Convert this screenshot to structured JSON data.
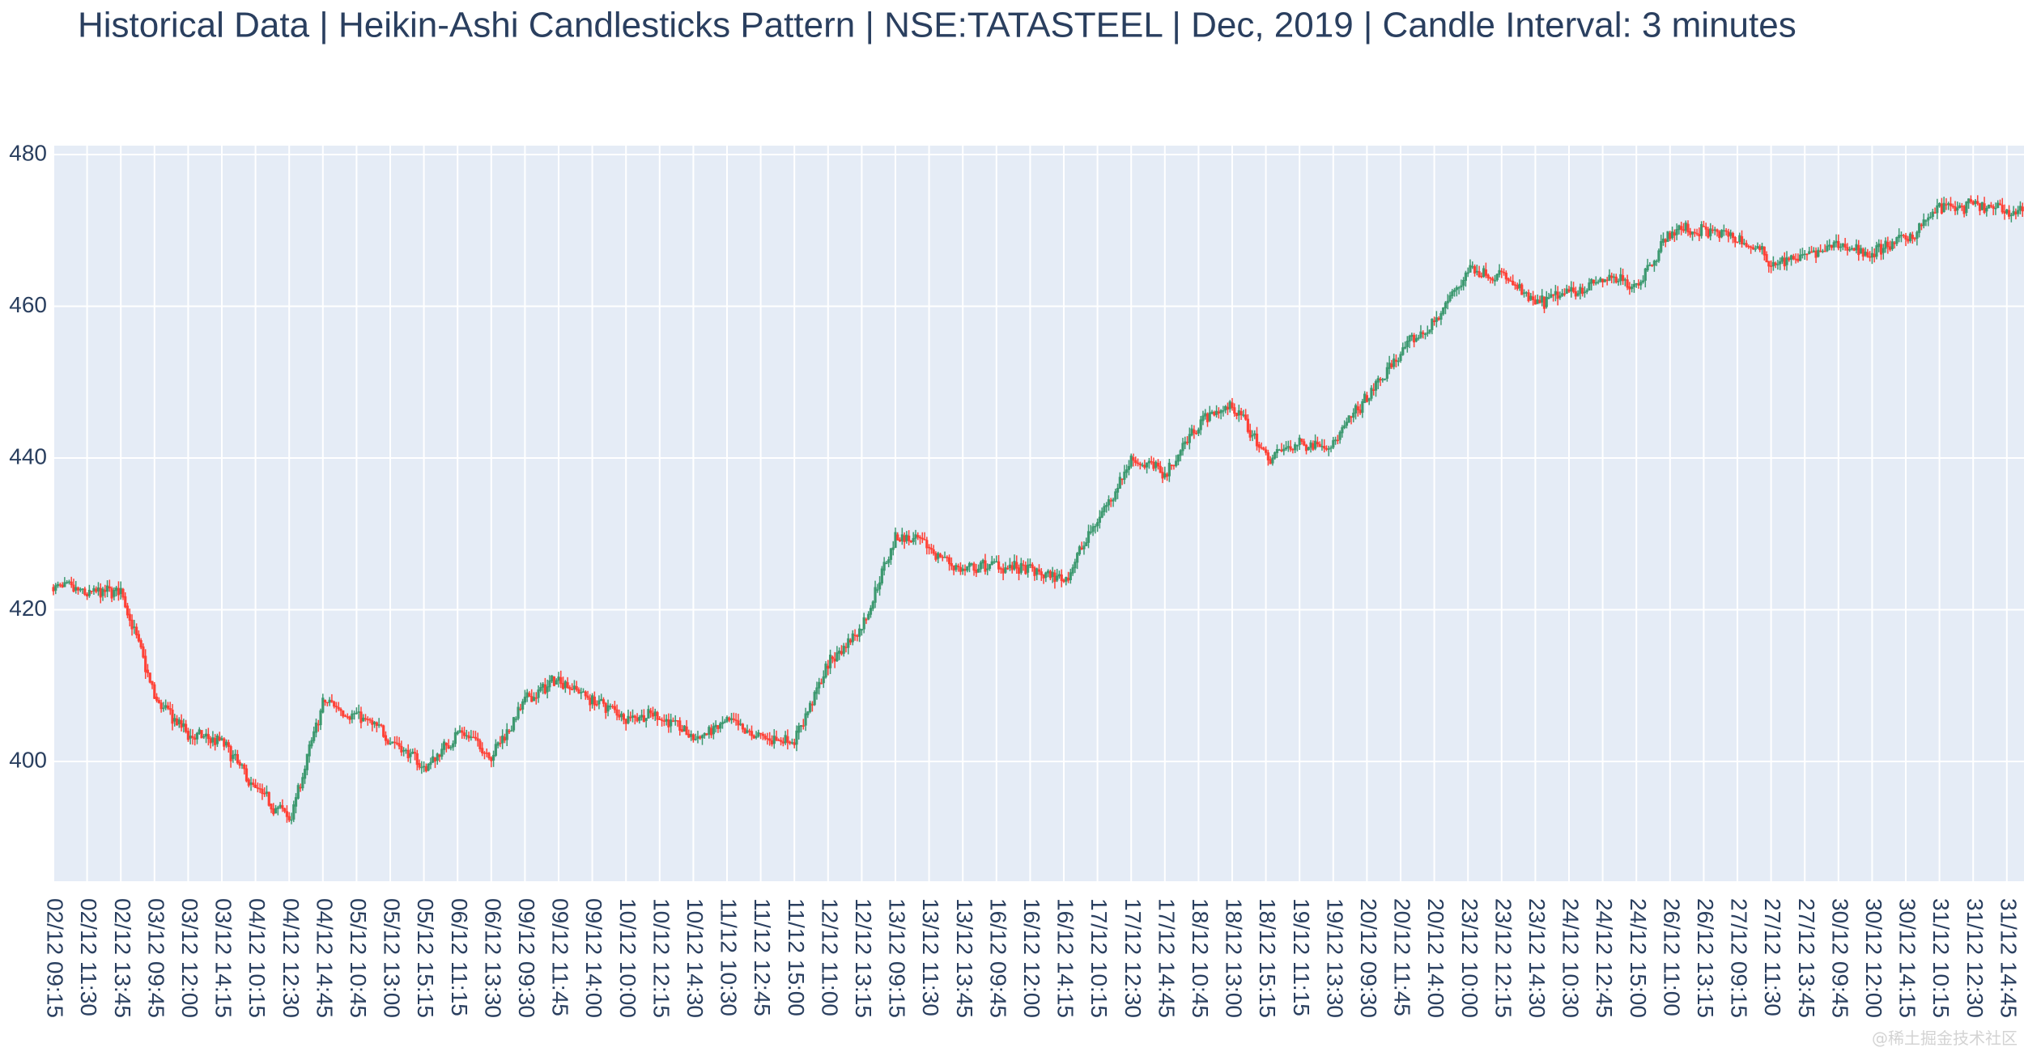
{
  "chart_data": {
    "type": "candlestick",
    "title": "Historical Data | Heikin-Ashi Candlesticks Pattern | NSE:TATASTEEL | Dec, 2019 | Candle Interval: 3 minutes",
    "xlabel": "",
    "ylabel": "",
    "ylim": [
      384,
      481
    ],
    "yticks": [
      400,
      420,
      440,
      460,
      480
    ],
    "grid": true,
    "increasing_color": "#3D9970",
    "decreasing_color": "#FF4136",
    "x_ticks": [
      "02/12 09:15",
      "02/12 11:30",
      "02/12 13:45",
      "03/12 09:45",
      "03/12 12:00",
      "03/12 14:15",
      "04/12 10:15",
      "04/12 12:30",
      "04/12 14:45",
      "05/12 10:45",
      "05/12 13:00",
      "05/12 15:15",
      "06/12 11:15",
      "06/12 13:30",
      "09/12 09:30",
      "09/12 11:45",
      "09/12 14:00",
      "10/12 10:00",
      "10/12 12:15",
      "10/12 14:30",
      "11/12 10:30",
      "11/12 12:45",
      "11/12 15:00",
      "12/12 11:00",
      "12/12 13:15",
      "13/12 09:15",
      "13/12 11:30",
      "13/12 13:45",
      "16/12 09:45",
      "16/12 12:00",
      "16/12 14:15",
      "17/12 10:15",
      "17/12 12:30",
      "17/12 14:45",
      "18/12 10:45",
      "18/12 13:00",
      "18/12 15:15",
      "19/12 11:15",
      "19/12 13:30",
      "20/12 09:30",
      "20/12 11:45",
      "20/12 14:00",
      "23/12 10:00",
      "23/12 12:15",
      "23/12 14:30",
      "24/12 10:30",
      "24/12 12:45",
      "24/12 15:00",
      "26/12 11:00",
      "26/12 13:15",
      "27/12 09:15",
      "27/12 11:30",
      "27/12 13:45",
      "30/12 09:45",
      "30/12 12:00",
      "30/12 14:15",
      "31/12 10:15",
      "31/12 12:30",
      "31/12 14:45"
    ],
    "approx_close_at_ticks": [
      423,
      422,
      422.5,
      408,
      403.5,
      402.5,
      396,
      392.5,
      408,
      406,
      403,
      399,
      404,
      401,
      408,
      411,
      408,
      406,
      406,
      403,
      405,
      403,
      403,
      413,
      418,
      430,
      428,
      425,
      426,
      425,
      424,
      432,
      440,
      438,
      445,
      447,
      440,
      442,
      442,
      448,
      454,
      458,
      465,
      464,
      460,
      462,
      463.5,
      463,
      470,
      470,
      469,
      466,
      466.5,
      468,
      467,
      469,
      473,
      473,
      472.5
    ]
  },
  "watermark": "@稀土掘金技术社区"
}
